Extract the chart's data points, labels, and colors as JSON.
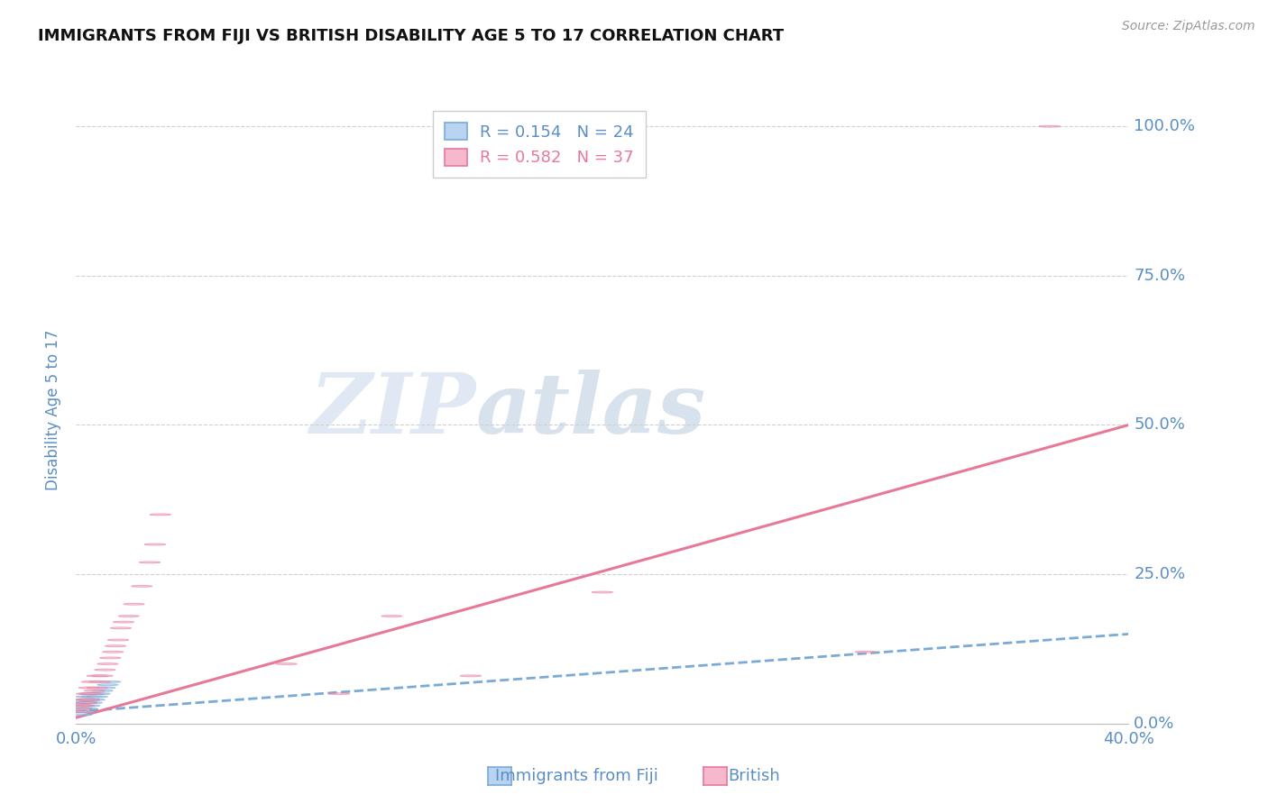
{
  "title": "IMMIGRANTS FROM FIJI VS BRITISH DISABILITY AGE 5 TO 17 CORRELATION CHART",
  "source": "Source: ZipAtlas.com",
  "ylabel": "Disability Age 5 to 17",
  "xlim": [
    0.0,
    0.4
  ],
  "ylim": [
    0.0,
    1.05
  ],
  "xtick_positions": [
    0.0,
    0.4
  ],
  "xticklabels": [
    "0.0%",
    "40.0%"
  ],
  "ytick_positions": [
    0.0,
    0.25,
    0.5,
    0.75,
    1.0
  ],
  "yticklabels": [
    "0.0%",
    "25.0%",
    "50.0%",
    "75.0%",
    "100.0%"
  ],
  "fiji_fill_color": "#b8d4f0",
  "fiji_edge_color": "#7aaad8",
  "british_fill_color": "#f5b8cc",
  "british_edge_color": "#e87898",
  "fiji_line_color": "#7aaad8",
  "british_line_color": "#e87898",
  "R_fiji": 0.154,
  "N_fiji": 24,
  "R_british": 0.582,
  "N_british": 37,
  "watermark_zip": "ZIP",
  "watermark_atlas": "atlas",
  "title_color": "#111111",
  "axis_label_color": "#5b8ec4",
  "tick_color": "#5b8ec4",
  "grid_color": "#d0d0d0",
  "background_color": "#ffffff",
  "legend_color_fiji": "#5b8ec4",
  "legend_color_british": "#e87898",
  "fiji_scatter_x": [
    0.001,
    0.001,
    0.002,
    0.002,
    0.002,
    0.003,
    0.003,
    0.003,
    0.004,
    0.004,
    0.004,
    0.005,
    0.005,
    0.005,
    0.006,
    0.006,
    0.007,
    0.007,
    0.008,
    0.009,
    0.01,
    0.011,
    0.012,
    0.013
  ],
  "fiji_scatter_y": [
    0.02,
    0.03,
    0.015,
    0.025,
    0.035,
    0.02,
    0.03,
    0.04,
    0.025,
    0.035,
    0.045,
    0.03,
    0.04,
    0.05,
    0.035,
    0.045,
    0.04,
    0.05,
    0.045,
    0.05,
    0.055,
    0.06,
    0.065,
    0.07
  ],
  "british_scatter_x": [
    0.001,
    0.002,
    0.002,
    0.003,
    0.003,
    0.004,
    0.004,
    0.005,
    0.005,
    0.006,
    0.006,
    0.007,
    0.008,
    0.008,
    0.009,
    0.01,
    0.011,
    0.012,
    0.013,
    0.014,
    0.015,
    0.016,
    0.017,
    0.018,
    0.02,
    0.022,
    0.025,
    0.028,
    0.03,
    0.032,
    0.08,
    0.1,
    0.12,
    0.15,
    0.2,
    0.3,
    0.37
  ],
  "british_scatter_y": [
    0.02,
    0.025,
    0.03,
    0.03,
    0.04,
    0.035,
    0.05,
    0.04,
    0.06,
    0.05,
    0.07,
    0.055,
    0.06,
    0.08,
    0.07,
    0.08,
    0.09,
    0.1,
    0.11,
    0.12,
    0.13,
    0.14,
    0.16,
    0.17,
    0.18,
    0.2,
    0.23,
    0.27,
    0.3,
    0.35,
    0.1,
    0.05,
    0.18,
    0.08,
    0.22,
    0.12,
    1.0
  ],
  "british_trend_x0": 0.0,
  "british_trend_y0": 0.01,
  "british_trend_x1": 0.4,
  "british_trend_y1": 0.5,
  "fiji_trend_x0": 0.0,
  "fiji_trend_y0": 0.02,
  "fiji_trend_x1": 0.4,
  "fiji_trend_y1": 0.15
}
